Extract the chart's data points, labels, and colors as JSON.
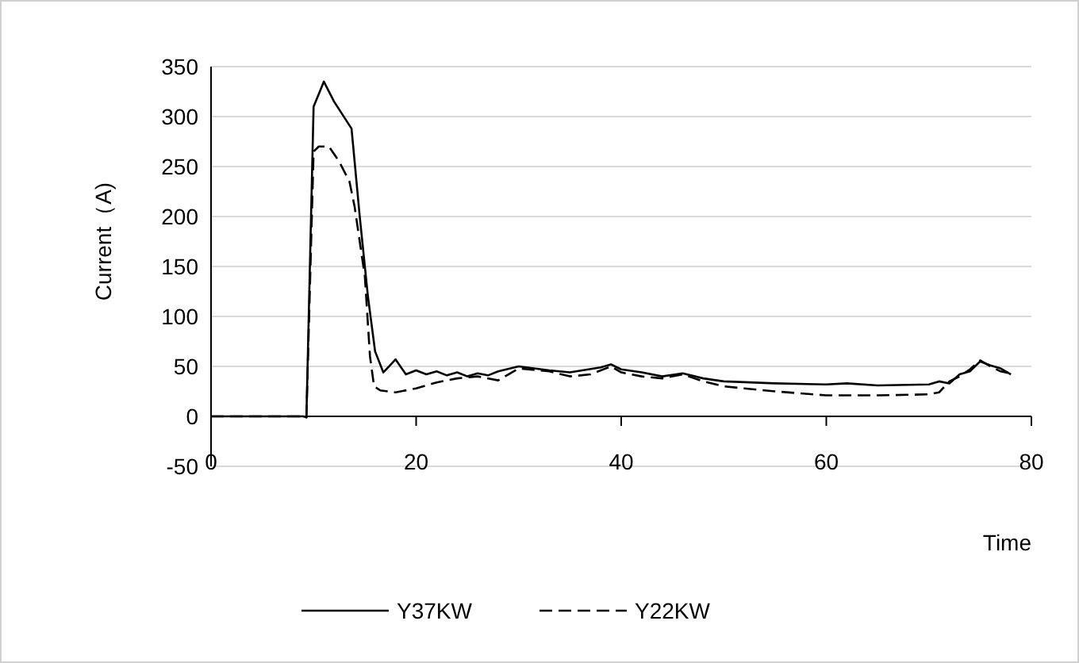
{
  "chart_data": {
    "type": "line",
    "xlabel": "Time",
    "ylabel": "Current（A)",
    "xlim": [
      0,
      80
    ],
    "xticks": [
      0,
      20,
      40,
      60,
      80
    ],
    "ylim": [
      -50,
      350
    ],
    "yticks": [
      -50,
      0,
      50,
      100,
      150,
      200,
      250,
      300,
      350
    ],
    "grid": "y",
    "legend": "bottom",
    "marker": "none",
    "series": [
      {
        "name": "Y37KW",
        "color": "#000000",
        "line_style": "solid",
        "x": [
          0,
          9,
          9.3,
          10,
          11,
          12,
          13.7,
          14.5,
          15.3,
          16,
          16.8,
          18,
          19,
          20,
          21,
          22,
          23,
          24,
          25,
          26,
          27,
          28,
          30,
          33,
          35,
          38,
          39,
          40,
          42,
          44,
          46,
          48,
          50,
          55,
          60,
          62,
          65,
          70,
          71,
          72,
          73,
          74,
          75,
          76,
          77,
          78
        ],
        "values": [
          0,
          0,
          -1,
          310,
          335,
          315,
          288,
          200,
          120,
          65,
          44,
          57,
          42,
          46,
          42,
          45,
          41,
          44,
          40,
          43,
          41,
          45,
          50,
          46,
          44,
          49,
          52,
          47,
          44,
          40,
          43,
          38,
          35,
          33,
          32,
          33,
          31,
          32,
          35,
          33,
          42,
          45,
          55,
          51,
          48,
          42
        ]
      },
      {
        "name": "Y22KW",
        "color": "#000000",
        "line_style": "dashed",
        "x": [
          0,
          9,
          9.3,
          10,
          10.5,
          11.5,
          12.5,
          13.5,
          14,
          15,
          15.5,
          15.9,
          16.5,
          18,
          20,
          22,
          24,
          26,
          28,
          30,
          33,
          35,
          37,
          39,
          40,
          42,
          44,
          46,
          48,
          50,
          52,
          55,
          60,
          65,
          70,
          71,
          72,
          73,
          74,
          75,
          76,
          77,
          78
        ],
        "values": [
          0,
          0,
          -1,
          265,
          270,
          270,
          255,
          235,
          210,
          140,
          60,
          30,
          26,
          24,
          28,
          34,
          38,
          40,
          36,
          48,
          45,
          40,
          42,
          50,
          44,
          40,
          38,
          42,
          35,
          30,
          28,
          25,
          21,
          21,
          22,
          24,
          35,
          40,
          47,
          56,
          50,
          45,
          43
        ]
      }
    ]
  }
}
